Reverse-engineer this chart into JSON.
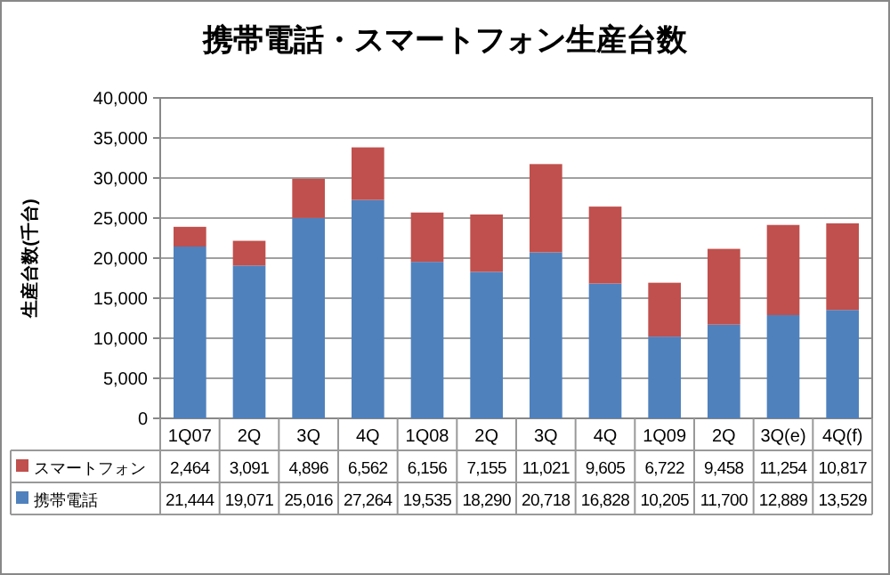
{
  "chart_data": {
    "type": "bar",
    "title": "携帯電話・スマートフォン生産台数",
    "ylabel": "生産台数(千台)",
    "stacked": true,
    "grid": "y",
    "legend": "bottom left",
    "categories": [
      "1Q07",
      "2Q",
      "3Q",
      "4Q",
      "1Q08",
      "2Q",
      "3Q",
      "4Q",
      "1Q09",
      "2Q",
      "3Q(e)",
      "4Q(f)"
    ],
    "series": [
      {
        "name": "携帯電話",
        "color": "#4f81bd",
        "values": [
          21444,
          19071,
          25016,
          27264,
          19535,
          18290,
          20718,
          16828,
          10205,
          11700,
          12889,
          13529
        ],
        "value_labels": [
          "21,444",
          "19,071",
          "25,016",
          "27,264",
          "19,535",
          "18,290",
          "20,718",
          "16,828",
          "10,205",
          "11,700",
          "12,889",
          "13,529"
        ]
      },
      {
        "name": "スマートフォン",
        "color": "#c0504d",
        "values": [
          2464,
          3091,
          4896,
          6562,
          6156,
          7155,
          11021,
          9605,
          6722,
          9458,
          11254,
          10817
        ],
        "value_labels": [
          "2,464",
          "3,091",
          "4,896",
          "6,562",
          "6,156",
          "7,155",
          "11,021",
          "9,605",
          "6,722",
          "9,458",
          "11,254",
          "10,817"
        ]
      }
    ],
    "ylim": [
      0,
      40000
    ],
    "yticks": [
      {
        "value": 0,
        "label": "0"
      },
      {
        "value": 5000,
        "label": "5,000"
      },
      {
        "value": 10000,
        "label": "10,000"
      },
      {
        "value": 15000,
        "label": "15,000"
      },
      {
        "value": 20000,
        "label": "20,000"
      },
      {
        "value": 25000,
        "label": "25,000"
      },
      {
        "value": 30000,
        "label": "30,000"
      },
      {
        "value": 35000,
        "label": "35,000"
      },
      {
        "value": 40000,
        "label": "40,000"
      }
    ]
  }
}
